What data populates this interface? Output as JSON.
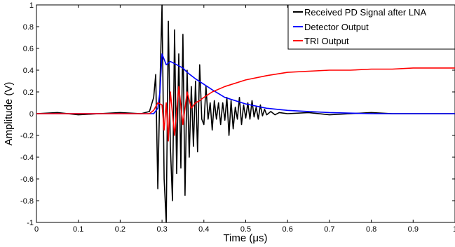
{
  "chart_data": {
    "type": "line",
    "xlabel": "Time (μs)",
    "ylabel": "Amplitude (V)",
    "xlim": [
      0,
      1
    ],
    "ylim": [
      -1,
      1
    ],
    "xticks": [
      0,
      0.1,
      0.2,
      0.3,
      0.4,
      0.5,
      0.6,
      0.7,
      0.8,
      0.9,
      1
    ],
    "yticks": [
      -1,
      -0.8,
      -0.6,
      -0.4,
      -0.2,
      0,
      0.2,
      0.4,
      0.6,
      0.8,
      1
    ],
    "grid": false,
    "legend_position": "top-right",
    "series": [
      {
        "name": "Received PD Signal after LNA",
        "color": "#000000",
        "x": [
          0,
          0.05,
          0.1,
          0.15,
          0.2,
          0.25,
          0.27,
          0.28,
          0.285,
          0.29,
          0.295,
          0.3,
          0.305,
          0.31,
          0.315,
          0.32,
          0.325,
          0.33,
          0.335,
          0.34,
          0.345,
          0.35,
          0.355,
          0.36,
          0.365,
          0.37,
          0.375,
          0.38,
          0.385,
          0.39,
          0.395,
          0.4,
          0.405,
          0.41,
          0.415,
          0.42,
          0.425,
          0.43,
          0.435,
          0.44,
          0.445,
          0.45,
          0.455,
          0.46,
          0.465,
          0.47,
          0.475,
          0.48,
          0.485,
          0.49,
          0.495,
          0.5,
          0.505,
          0.51,
          0.515,
          0.52,
          0.525,
          0.53,
          0.535,
          0.54,
          0.545,
          0.55,
          0.56,
          0.57,
          0.58,
          0.6,
          0.65,
          0.7,
          0.75,
          0.8,
          0.85,
          0.9,
          0.95,
          1.0
        ],
        "y": [
          0,
          0.01,
          -0.01,
          0,
          0.01,
          0,
          0.02,
          0.15,
          0.36,
          -0.69,
          0.25,
          1.0,
          -0.6,
          -1.0,
          0.85,
          -0.3,
          -0.8,
          0.77,
          -0.55,
          0.55,
          -0.5,
          0.73,
          -0.75,
          0.4,
          -0.4,
          0.25,
          -0.3,
          0.3,
          -0.35,
          0.45,
          -0.05,
          -0.1,
          0.25,
          -0.05,
          0.1,
          -0.15,
          0.12,
          -0.05,
          0.1,
          -0.1,
          0.1,
          -0.06,
          0.15,
          -0.2,
          0.12,
          -0.14,
          0.06,
          -0.05,
          0.15,
          -0.1,
          0.08,
          -0.04,
          0.1,
          -0.05,
          0.12,
          -0.03,
          0.06,
          -0.05,
          0.08,
          -0.02,
          0.04,
          -0.01,
          0.02,
          -0.01,
          0.01,
          0,
          0.01,
          -0.01,
          0,
          0.01,
          0,
          0,
          0,
          0
        ]
      },
      {
        "name": "Detector Output",
        "color": "#0000ff",
        "x": [
          0,
          0.1,
          0.2,
          0.28,
          0.29,
          0.295,
          0.3,
          0.305,
          0.31,
          0.32,
          0.33,
          0.34,
          0.35,
          0.36,
          0.38,
          0.4,
          0.42,
          0.45,
          0.5,
          0.55,
          0.6,
          0.65,
          0.7,
          0.8,
          0.9,
          1.0
        ],
        "y": [
          0,
          0,
          0,
          0,
          0.05,
          0.2,
          0.55,
          0.5,
          0.45,
          0.48,
          0.46,
          0.44,
          0.42,
          0.38,
          0.32,
          0.27,
          0.22,
          0.15,
          0.09,
          0.05,
          0.03,
          0.02,
          0.01,
          0,
          0,
          0
        ]
      },
      {
        "name": "TRI Output",
        "color": "#ff0000",
        "x": [
          0,
          0.1,
          0.2,
          0.27,
          0.28,
          0.29,
          0.3,
          0.305,
          0.31,
          0.315,
          0.32,
          0.33,
          0.34,
          0.35,
          0.36,
          0.37,
          0.38,
          0.39,
          0.4,
          0.42,
          0.45,
          0.5,
          0.55,
          0.6,
          0.65,
          0.7,
          0.75,
          0.8,
          0.85,
          0.9,
          0.95,
          1.0
        ],
        "y": [
          0,
          0,
          0,
          0,
          0.03,
          0.1,
          0.08,
          -0.15,
          0.1,
          -0.25,
          0.2,
          -0.2,
          0.25,
          -0.1,
          0.2,
          0.05,
          0.1,
          0.12,
          0.15,
          0.2,
          0.25,
          0.31,
          0.35,
          0.38,
          0.39,
          0.4,
          0.4,
          0.41,
          0.41,
          0.42,
          0.42,
          0.42
        ]
      }
    ]
  }
}
